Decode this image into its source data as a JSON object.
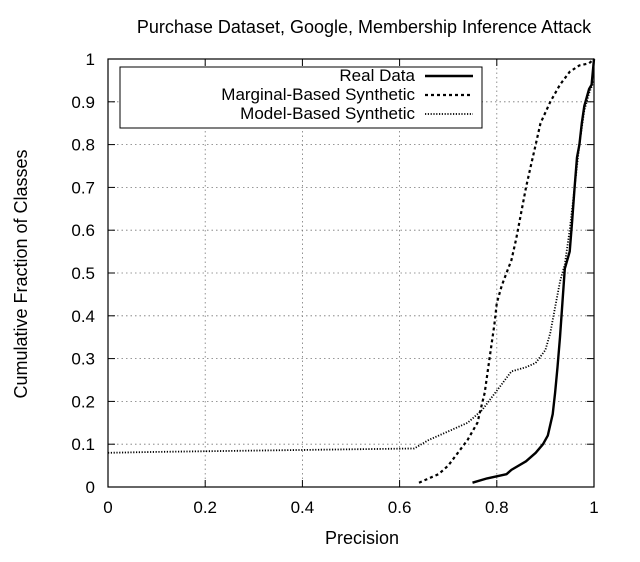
{
  "chart_data": {
    "type": "line",
    "title": "Purchase Dataset, Google, Membership Inference Attack",
    "xlabel": "Precision",
    "ylabel": "Cumulative Fraction of Classes",
    "xlim": [
      0,
      1
    ],
    "ylim": [
      0,
      1
    ],
    "x_ticks": [
      0,
      0.2,
      0.4,
      0.6,
      0.8,
      1
    ],
    "x_tick_labels": [
      "0",
      "0.2",
      "0.4",
      "0.6",
      "0.8",
      "1"
    ],
    "y_ticks": [
      0,
      0.1,
      0.2,
      0.3,
      0.4,
      0.5,
      0.6,
      0.7,
      0.8,
      0.9,
      1
    ],
    "y_tick_labels": [
      "0",
      "0.1",
      "0.2",
      "0.3",
      "0.4",
      "0.5",
      "0.6",
      "0.7",
      "0.8",
      "0.9",
      "1"
    ],
    "grid": true,
    "legend_position": "top-right",
    "series": [
      {
        "name": "Real Data",
        "style": "solid",
        "points": [
          [
            0.75,
            0.01
          ],
          [
            0.78,
            0.02
          ],
          [
            0.82,
            0.03
          ],
          [
            0.83,
            0.04
          ],
          [
            0.86,
            0.06
          ],
          [
            0.88,
            0.08
          ],
          [
            0.895,
            0.1
          ],
          [
            0.905,
            0.12
          ],
          [
            0.915,
            0.17
          ],
          [
            0.92,
            0.22
          ],
          [
            0.925,
            0.28
          ],
          [
            0.93,
            0.35
          ],
          [
            0.935,
            0.43
          ],
          [
            0.94,
            0.51
          ],
          [
            0.95,
            0.55
          ],
          [
            0.955,
            0.62
          ],
          [
            0.96,
            0.7
          ],
          [
            0.965,
            0.77
          ],
          [
            0.97,
            0.8
          ],
          [
            0.975,
            0.85
          ],
          [
            0.98,
            0.89
          ],
          [
            0.985,
            0.91
          ],
          [
            0.99,
            0.93
          ],
          [
            0.995,
            0.94
          ],
          [
            1.0,
            1.0
          ]
        ]
      },
      {
        "name": "Marginal-Based Synthetic",
        "style": "dashed",
        "points": [
          [
            0.64,
            0.01
          ],
          [
            0.66,
            0.02
          ],
          [
            0.68,
            0.03
          ],
          [
            0.7,
            0.05
          ],
          [
            0.72,
            0.08
          ],
          [
            0.74,
            0.11
          ],
          [
            0.76,
            0.15
          ],
          [
            0.775,
            0.22
          ],
          [
            0.785,
            0.3
          ],
          [
            0.795,
            0.38
          ],
          [
            0.8,
            0.43
          ],
          [
            0.81,
            0.47
          ],
          [
            0.82,
            0.5
          ],
          [
            0.83,
            0.53
          ],
          [
            0.84,
            0.58
          ],
          [
            0.85,
            0.64
          ],
          [
            0.86,
            0.7
          ],
          [
            0.87,
            0.75
          ],
          [
            0.88,
            0.8
          ],
          [
            0.89,
            0.85
          ],
          [
            0.91,
            0.9
          ],
          [
            0.93,
            0.94
          ],
          [
            0.95,
            0.97
          ],
          [
            0.97,
            0.985
          ],
          [
            0.99,
            0.99
          ],
          [
            1.0,
            1.0
          ]
        ]
      },
      {
        "name": "Model-Based Synthetic",
        "style": "dotted",
        "points": [
          [
            0.0,
            0.08
          ],
          [
            0.1,
            0.082
          ],
          [
            0.3,
            0.085
          ],
          [
            0.5,
            0.088
          ],
          [
            0.63,
            0.09
          ],
          [
            0.66,
            0.11
          ],
          [
            0.7,
            0.13
          ],
          [
            0.74,
            0.15
          ],
          [
            0.77,
            0.18
          ],
          [
            0.79,
            0.21
          ],
          [
            0.81,
            0.24
          ],
          [
            0.83,
            0.27
          ],
          [
            0.86,
            0.28
          ],
          [
            0.88,
            0.29
          ],
          [
            0.9,
            0.32
          ],
          [
            0.91,
            0.36
          ],
          [
            0.92,
            0.42
          ],
          [
            0.93,
            0.48
          ],
          [
            0.94,
            0.52
          ],
          [
            0.95,
            0.6
          ],
          [
            0.96,
            0.7
          ],
          [
            0.97,
            0.8
          ],
          [
            0.98,
            0.88
          ],
          [
            0.99,
            0.92
          ],
          [
            1.0,
            0.95
          ]
        ]
      }
    ]
  }
}
